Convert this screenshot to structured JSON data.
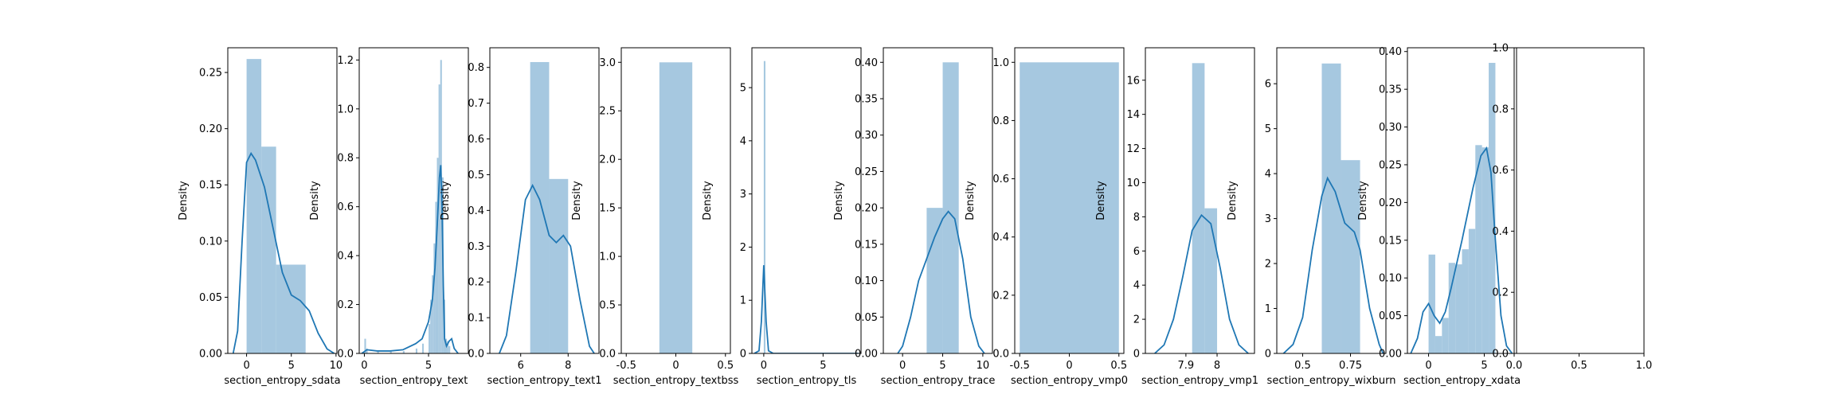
{
  "colors": {
    "bar": "#a6c8e0",
    "line": "#1f77b4",
    "axis": "#000000"
  },
  "chart_data": [
    {
      "type": "bar",
      "xlabel": "section_entropy_sdata",
      "ylabel": "Density",
      "xlim": [
        -2.1,
        10.1
      ],
      "ylim": [
        0,
        0.272
      ],
      "xticks": [
        0,
        5,
        10
      ],
      "yticks": [
        0.0,
        0.05,
        0.1,
        0.15,
        0.2,
        0.25
      ],
      "yticklabels": [
        "0.00",
        "0.05",
        "0.10",
        "0.15",
        "0.20",
        "0.25"
      ],
      "bins": [
        {
          "x0": 0.0,
          "x1": 1.65,
          "y": 0.262
        },
        {
          "x0": 1.65,
          "x1": 3.3,
          "y": 0.184
        },
        {
          "x0": 3.3,
          "x1": 6.6,
          "y": 0.079
        }
      ],
      "kde": [
        [
          -1.5,
          0.0
        ],
        [
          -1.0,
          0.02
        ],
        [
          -0.5,
          0.1
        ],
        [
          0.0,
          0.17
        ],
        [
          0.5,
          0.178
        ],
        [
          1.0,
          0.172
        ],
        [
          2.0,
          0.148
        ],
        [
          3.0,
          0.11
        ],
        [
          4.0,
          0.072
        ],
        [
          5.0,
          0.052
        ],
        [
          6.0,
          0.047
        ],
        [
          7.0,
          0.038
        ],
        [
          8.0,
          0.018
        ],
        [
          9.0,
          0.004
        ],
        [
          9.8,
          0.0
        ]
      ]
    },
    {
      "type": "bar",
      "xlabel": "section_entropy_text",
      "ylabel": "Density",
      "xlim": [
        -0.4,
        8.1
      ],
      "ylim": [
        0,
        1.25
      ],
      "xticks": [
        0,
        5
      ],
      "yticks": [
        0.0,
        0.2,
        0.4,
        0.6,
        0.8,
        1.0,
        1.2
      ],
      "yticklabels": [
        "0.0",
        "0.2",
        "0.4",
        "0.6",
        "0.8",
        "1.0",
        "1.2"
      ],
      "bins": [
        {
          "x0": 0.0,
          "x1": 0.13,
          "y": 0.06
        },
        {
          "x0": 0.13,
          "x1": 0.26,
          "y": 0.02
        },
        {
          "x0": 1.0,
          "x1": 1.13,
          "y": 0.01
        },
        {
          "x0": 2.0,
          "x1": 2.13,
          "y": 0.01
        },
        {
          "x0": 3.0,
          "x1": 3.13,
          "y": 0.01
        },
        {
          "x0": 4.0,
          "x1": 4.13,
          "y": 0.02
        },
        {
          "x0": 4.5,
          "x1": 4.63,
          "y": 0.04
        },
        {
          "x0": 5.0,
          "x1": 5.13,
          "y": 0.12
        },
        {
          "x0": 5.13,
          "x1": 5.26,
          "y": 0.22
        },
        {
          "x0": 5.26,
          "x1": 5.39,
          "y": 0.32
        },
        {
          "x0": 5.39,
          "x1": 5.52,
          "y": 0.45
        },
        {
          "x0": 5.52,
          "x1": 5.65,
          "y": 0.62
        },
        {
          "x0": 5.65,
          "x1": 5.78,
          "y": 0.8
        },
        {
          "x0": 5.78,
          "x1": 5.91,
          "y": 1.1
        },
        {
          "x0": 5.91,
          "x1": 6.04,
          "y": 1.2
        },
        {
          "x0": 6.04,
          "x1": 6.17,
          "y": 0.72
        },
        {
          "x0": 6.17,
          "x1": 6.3,
          "y": 0.22
        },
        {
          "x0": 6.3,
          "x1": 6.43,
          "y": 0.06
        },
        {
          "x0": 6.43,
          "x1": 6.56,
          "y": 0.05
        },
        {
          "x0": 6.56,
          "x1": 6.69,
          "y": 0.03
        }
      ],
      "kde": [
        [
          -0.2,
          0.0
        ],
        [
          0.2,
          0.015
        ],
        [
          1.0,
          0.01
        ],
        [
          2.0,
          0.01
        ],
        [
          3.0,
          0.015
        ],
        [
          4.0,
          0.04
        ],
        [
          4.5,
          0.06
        ],
        [
          5.0,
          0.13
        ],
        [
          5.3,
          0.22
        ],
        [
          5.5,
          0.35
        ],
        [
          5.7,
          0.55
        ],
        [
          5.85,
          0.72
        ],
        [
          5.95,
          0.77
        ],
        [
          6.05,
          0.6
        ],
        [
          6.15,
          0.28
        ],
        [
          6.25,
          0.06
        ],
        [
          6.4,
          0.03
        ],
        [
          6.6,
          0.05
        ],
        [
          6.8,
          0.06
        ],
        [
          7.0,
          0.02
        ],
        [
          7.3,
          0.0
        ]
      ]
    },
    {
      "type": "bar",
      "xlabel": "section_entropy_text1",
      "ylabel": "Density",
      "xlim": [
        4.7,
        9.3
      ],
      "ylim": [
        0,
        0.855
      ],
      "xticks": [
        6,
        8
      ],
      "yticks": [
        0.0,
        0.1,
        0.2,
        0.3,
        0.4,
        0.5,
        0.6,
        0.7,
        0.8
      ],
      "yticklabels": [
        "0.0",
        "0.1",
        "0.2",
        "0.3",
        "0.4",
        "0.5",
        "0.6",
        "0.7",
        "0.8"
      ],
      "bins": [
        {
          "x0": 6.4,
          "x1": 7.2,
          "y": 0.815
        },
        {
          "x0": 7.2,
          "x1": 8.0,
          "y": 0.488
        }
      ],
      "kde": [
        [
          5.1,
          0.0
        ],
        [
          5.4,
          0.05
        ],
        [
          5.8,
          0.23
        ],
        [
          6.2,
          0.43
        ],
        [
          6.5,
          0.47
        ],
        [
          6.8,
          0.43
        ],
        [
          7.2,
          0.33
        ],
        [
          7.5,
          0.31
        ],
        [
          7.8,
          0.33
        ],
        [
          8.1,
          0.3
        ],
        [
          8.5,
          0.15
        ],
        [
          8.9,
          0.02
        ],
        [
          9.1,
          0.0
        ]
      ]
    },
    {
      "type": "bar",
      "xlabel": "section_entropy_textbss",
      "ylabel": "Density",
      "xlim": [
        -0.55,
        0.55
      ],
      "ylim": [
        0,
        3.15
      ],
      "xticks": [
        -0.5,
        0.0,
        0.5
      ],
      "yticks": [
        0.0,
        0.5,
        1.0,
        1.5,
        2.0,
        2.5,
        3.0
      ],
      "yticklabels": [
        "0.0",
        "0.5",
        "1.0",
        "1.5",
        "2.0",
        "2.5",
        "3.0"
      ],
      "bins": [
        {
          "x0": -0.166,
          "x1": 0.166,
          "y": 3.0
        }
      ],
      "kde": []
    },
    {
      "type": "bar",
      "xlabel": "section_entropy_tls",
      "ylabel": "Density",
      "xlim": [
        -1.0,
        8.2
      ],
      "ylim": [
        0,
        5.75
      ],
      "xticks": [
        0,
        5
      ],
      "yticks": [
        0,
        1,
        2,
        3,
        4,
        5
      ],
      "yticklabels": [
        "0",
        "1",
        "2",
        "3",
        "4",
        "5"
      ],
      "bins": [
        {
          "x0": 0.0,
          "x1": 0.14,
          "y": 5.5
        }
      ],
      "kde": [
        [
          -0.8,
          0.0
        ],
        [
          -0.4,
          0.05
        ],
        [
          -0.2,
          0.6
        ],
        [
          0.0,
          1.66
        ],
        [
          0.2,
          0.6
        ],
        [
          0.4,
          0.05
        ],
        [
          0.8,
          0.0
        ],
        [
          2.0,
          0.0
        ],
        [
          4.0,
          0.0
        ],
        [
          6.0,
          0.0
        ],
        [
          8.0,
          0.0
        ]
      ]
    },
    {
      "type": "bar",
      "xlabel": "section_entropy_trace",
      "ylabel": "Density",
      "xlim": [
        -2.4,
        11.2
      ],
      "ylim": [
        0,
        0.42
      ],
      "xticks": [
        0,
        5,
        10
      ],
      "yticks": [
        0.0,
        0.05,
        0.1,
        0.15,
        0.2,
        0.25,
        0.3,
        0.35,
        0.4
      ],
      "yticklabels": [
        "0.00",
        "0.05",
        "0.10",
        "0.15",
        "0.20",
        "0.25",
        "0.30",
        "0.35",
        "0.40"
      ],
      "bins": [
        {
          "x0": 3.0,
          "x1": 5.0,
          "y": 0.2
        },
        {
          "x0": 5.0,
          "x1": 7.0,
          "y": 0.4
        }
      ],
      "kde": [
        [
          -0.6,
          0.0
        ],
        [
          0.0,
          0.01
        ],
        [
          1.0,
          0.05
        ],
        [
          2.0,
          0.1
        ],
        [
          3.0,
          0.13
        ],
        [
          4.0,
          0.16
        ],
        [
          5.0,
          0.185
        ],
        [
          5.7,
          0.195
        ],
        [
          6.5,
          0.185
        ],
        [
          7.5,
          0.13
        ],
        [
          8.5,
          0.05
        ],
        [
          9.5,
          0.01
        ],
        [
          10.2,
          0.0
        ]
      ]
    },
    {
      "type": "bar",
      "xlabel": "section_entropy_vmp0",
      "ylabel": "Density",
      "xlim": [
        -0.55,
        0.55
      ],
      "ylim": [
        0,
        1.05
      ],
      "xticks": [
        -0.5,
        0.0,
        0.5
      ],
      "yticks": [
        0.0,
        0.2,
        0.4,
        0.6,
        0.8,
        1.0
      ],
      "yticklabels": [
        "0.0",
        "0.2",
        "0.4",
        "0.6",
        "0.8",
        "1.0"
      ],
      "bins": [
        {
          "x0": -0.5,
          "x1": 0.5,
          "y": 1.0
        }
      ],
      "kde": []
    },
    {
      "type": "bar",
      "xlabel": "section_entropy_vmp1",
      "ylabel": "Density",
      "xlim": [
        7.77,
        8.12
      ],
      "ylim": [
        0,
        17.9
      ],
      "xticks": [
        7.9,
        8.0
      ],
      "yticks": [
        0,
        2,
        4,
        6,
        8,
        10,
        12,
        14,
        16
      ],
      "yticklabels": [
        "0",
        "2",
        "4",
        "6",
        "8",
        "10",
        "12",
        "14",
        "16"
      ],
      "bins": [
        {
          "x0": 7.92,
          "x1": 7.96,
          "y": 17.0
        },
        {
          "x0": 7.96,
          "x1": 8.0,
          "y": 8.5
        }
      ],
      "kde": [
        [
          7.8,
          0.0
        ],
        [
          7.83,
          0.5
        ],
        [
          7.86,
          2.0
        ],
        [
          7.89,
          4.5
        ],
        [
          7.92,
          7.2
        ],
        [
          7.95,
          8.1
        ],
        [
          7.98,
          7.6
        ],
        [
          8.01,
          5.0
        ],
        [
          8.04,
          2.0
        ],
        [
          8.07,
          0.5
        ],
        [
          8.1,
          0.0
        ]
      ]
    },
    {
      "type": "bar",
      "xlabel": "section_entropy_wixburn",
      "ylabel": "Density",
      "xlim": [
        0.365,
        0.935
      ],
      "ylim": [
        0,
        6.8
      ],
      "xticks": [
        0.5,
        0.75
      ],
      "yticks": [
        0,
        1,
        2,
        3,
        4,
        5,
        6
      ],
      "yticklabels": [
        "0",
        "1",
        "2",
        "3",
        "4",
        "5",
        "6"
      ],
      "bins": [
        {
          "x0": 0.6,
          "x1": 0.7,
          "y": 6.45
        },
        {
          "x0": 0.7,
          "x1": 0.8,
          "y": 4.3
        }
      ],
      "kde": [
        [
          0.4,
          0.0
        ],
        [
          0.45,
          0.2
        ],
        [
          0.5,
          0.8
        ],
        [
          0.55,
          2.3
        ],
        [
          0.6,
          3.5
        ],
        [
          0.63,
          3.9
        ],
        [
          0.67,
          3.6
        ],
        [
          0.72,
          2.9
        ],
        [
          0.77,
          2.7
        ],
        [
          0.8,
          2.3
        ],
        [
          0.85,
          1.0
        ],
        [
          0.9,
          0.2
        ],
        [
          0.92,
          0.0
        ]
      ]
    },
    {
      "type": "bar",
      "xlabel": "section_entropy_xdata",
      "ylabel": "Density",
      "xlim": [
        -1.9,
        7.9
      ],
      "ylim": [
        0,
        0.405
      ],
      "xticks": [
        0,
        5
      ],
      "yticks": [
        0.0,
        0.05,
        0.1,
        0.15,
        0.2,
        0.25,
        0.3,
        0.35,
        0.4
      ],
      "yticklabels": [
        "0.00",
        "0.05",
        "0.10",
        "0.15",
        "0.20",
        "0.25",
        "0.30",
        "0.35",
        "0.40"
      ],
      "bins": [
        {
          "x0": 0.0,
          "x1": 0.6,
          "y": 0.131
        },
        {
          "x0": 0.6,
          "x1": 1.2,
          "y": 0.023
        },
        {
          "x0": 1.2,
          "x1": 1.8,
          "y": 0.047
        },
        {
          "x0": 1.8,
          "x1": 2.4,
          "y": 0.12
        },
        {
          "x0": 2.4,
          "x1": 3.0,
          "y": 0.118
        },
        {
          "x0": 3.0,
          "x1": 3.6,
          "y": 0.138
        },
        {
          "x0": 3.6,
          "x1": 4.2,
          "y": 0.165
        },
        {
          "x0": 4.2,
          "x1": 4.8,
          "y": 0.276
        },
        {
          "x0": 4.8,
          "x1": 5.4,
          "y": 0.273
        },
        {
          "x0": 5.4,
          "x1": 6.0,
          "y": 0.385
        }
      ],
      "kde": [
        [
          -1.6,
          0.0
        ],
        [
          -1.0,
          0.02
        ],
        [
          -0.5,
          0.055
        ],
        [
          0.0,
          0.066
        ],
        [
          0.5,
          0.05
        ],
        [
          1.0,
          0.04
        ],
        [
          1.5,
          0.055
        ],
        [
          2.0,
          0.085
        ],
        [
          3.0,
          0.15
        ],
        [
          4.0,
          0.22
        ],
        [
          4.7,
          0.262
        ],
        [
          5.2,
          0.272
        ],
        [
          5.6,
          0.24
        ],
        [
          6.0,
          0.15
        ],
        [
          6.5,
          0.05
        ],
        [
          7.0,
          0.01
        ],
        [
          7.5,
          0.0
        ]
      ]
    },
    {
      "type": "empty",
      "xlabel": "",
      "ylabel": "",
      "xlim": [
        0,
        1
      ],
      "ylim": [
        0,
        1
      ],
      "xticks": [
        0.0,
        0.5,
        1.0
      ],
      "xticklabels": [
        "0.0",
        "0.5",
        "1.0"
      ],
      "yticks": [
        0.0,
        0.2,
        0.4,
        0.6,
        0.8,
        1.0
      ],
      "yticklabels": [
        "0.0",
        "0.2",
        "0.4",
        "0.6",
        "0.8",
        "1.0"
      ],
      "bins": [],
      "kde": []
    }
  ]
}
